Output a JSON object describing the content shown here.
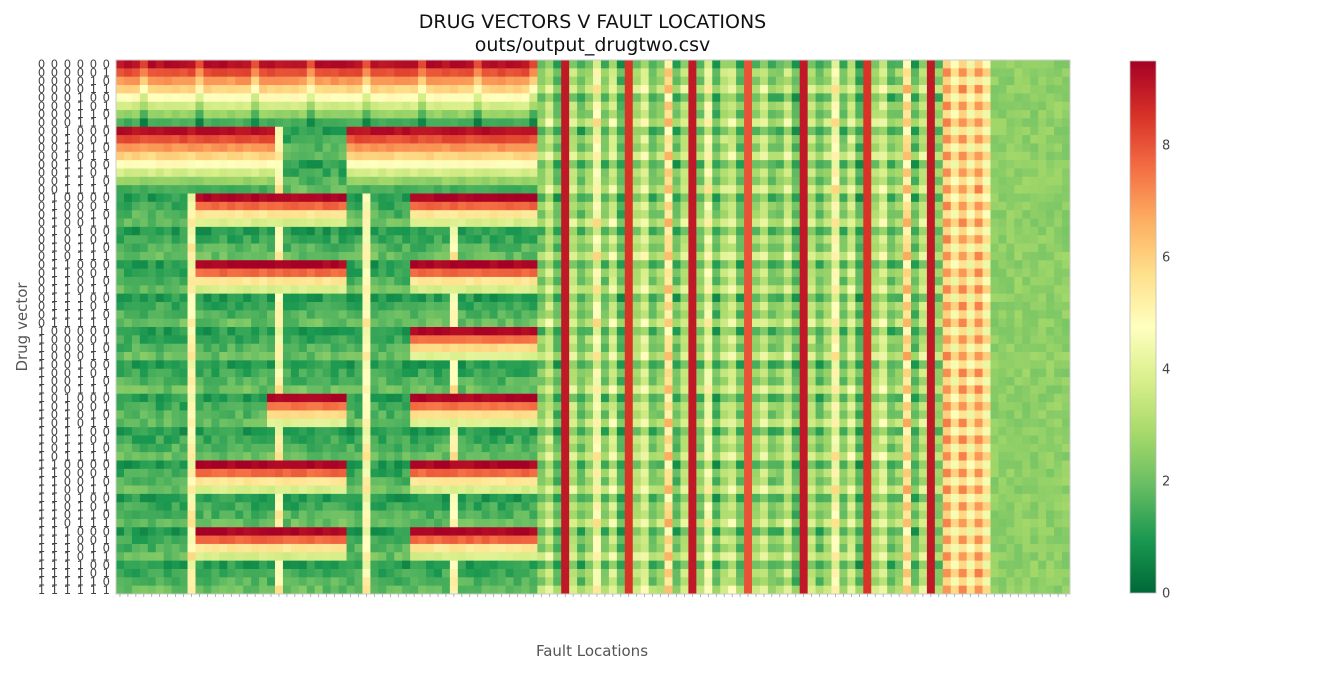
{
  "chart_data": {
    "type": "heatmap",
    "title": "DRUG VECTORS V FAULT LOCATIONS",
    "subtitle": "outs/output_drugtwo.csv",
    "xlabel": "Fault Locations",
    "ylabel": "Drug vector",
    "colormap": "RdYlGn_r",
    "colorbar": {
      "min": 0,
      "max": 9.5,
      "ticks": [
        0,
        2,
        4,
        6,
        8
      ]
    },
    "colors": {
      "low": "#006837",
      "mid": "#ffffbf",
      "high": "#a50026"
    },
    "rows": 64,
    "row_labels": [
      "0 0 0 0 0 0",
      "0 0 0 0 0 1",
      "0 0 0 0 1 0",
      "0 0 0 0 1 1",
      "0 0 0 1 0 0",
      "0 0 0 1 0 1",
      "0 0 0 1 1 0",
      "0 0 0 1 1 1",
      "0 0 1 0 0 0",
      "0 0 1 0 0 1",
      "0 0 1 0 1 0",
      "0 0 1 0 1 1",
      "0 0 1 1 0 0",
      "0 0 1 1 0 1",
      "0 0 1 1 1 0",
      "0 0 1 1 1 1",
      "0 1 0 0 0 0",
      "0 1 0 0 0 1",
      "0 1 0 0 1 0",
      "0 1 0 0 1 1",
      "0 1 0 1 0 0",
      "0 1 0 1 0 1",
      "0 1 0 1 1 0",
      "0 1 0 1 1 1",
      "0 1 1 0 0 0",
      "0 1 1 0 0 1",
      "0 1 1 0 1 0",
      "0 1 1 0 1 1",
      "0 1 1 1 0 0",
      "0 1 1 1 0 1",
      "0 1 1 1 1 0",
      "0 1 1 1 1 1",
      "1 0 0 0 0 0",
      "1 0 0 0 0 1",
      "1 0 0 0 1 0",
      "1 0 0 0 1 1",
      "1 0 0 1 0 0",
      "1 0 0 1 0 1",
      "1 0 0 1 1 0",
      "1 0 0 1 1 1",
      "1 0 1 0 0 0",
      "1 0 1 0 0 1",
      "1 0 1 0 1 0",
      "1 0 1 0 1 1",
      "1 0 1 1 0 0",
      "1 0 1 1 0 1",
      "1 0 1 1 1 0",
      "1 0 1 1 1 1",
      "1 1 0 0 0 0",
      "1 1 0 0 0 1",
      "1 1 0 0 1 0",
      "1 1 0 0 1 1",
      "1 1 0 1 0 0",
      "1 1 0 1 0 1",
      "1 1 0 1 1 0",
      "1 1 0 1 1 1",
      "1 1 1 0 0 0",
      "1 1 1 0 0 1",
      "1 1 1 0 1 0",
      "1 1 1 0 1 1",
      "1 1 1 1 0 0",
      "1 1 1 1 0 1",
      "1 1 1 1 1 0",
      "1 1 1 1 1 1"
    ],
    "blocks": [
      {
        "x": [
          0,
          50
        ],
        "value": 9.2,
        "rows_bit": {
          "bit": 0,
          "equals": 0,
          "sub_bit": 1
        }
      },
      {
        "x": [
          10,
          19
        ],
        "value": 9.2,
        "rows_bit": {
          "bit": 1,
          "equals": 1,
          "sub_bit": 2
        }
      },
      {
        "x": [
          35,
          50
        ],
        "value": 9.2,
        "rows_bit": {
          "bit": 1,
          "equals": 1,
          "sub_bit": 2
        }
      }
    ]
  }
}
